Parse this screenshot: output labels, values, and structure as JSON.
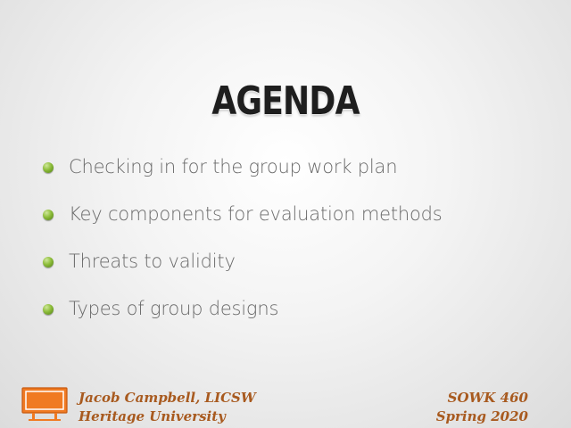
{
  "slide": {
    "title": "AGENDA",
    "bullets": [
      "Checking in for the group work plan",
      "Key components for evaluation methods",
      "Threats to validity",
      "Types of group designs"
    ]
  },
  "footer": {
    "left_line1": "Jacob Campbell, LICSW",
    "left_line2": "Heritage University",
    "right_line1": "SOWK 460",
    "right_line2": "Spring 2020",
    "icon": "easel-board-icon"
  },
  "colors": {
    "title": "#1e1e1e",
    "bullet_text": "#6a6a6a",
    "bullet_dot": "#8dbd3a",
    "footer_text": "#a85a1f",
    "icon_orange": "#f07a22"
  }
}
